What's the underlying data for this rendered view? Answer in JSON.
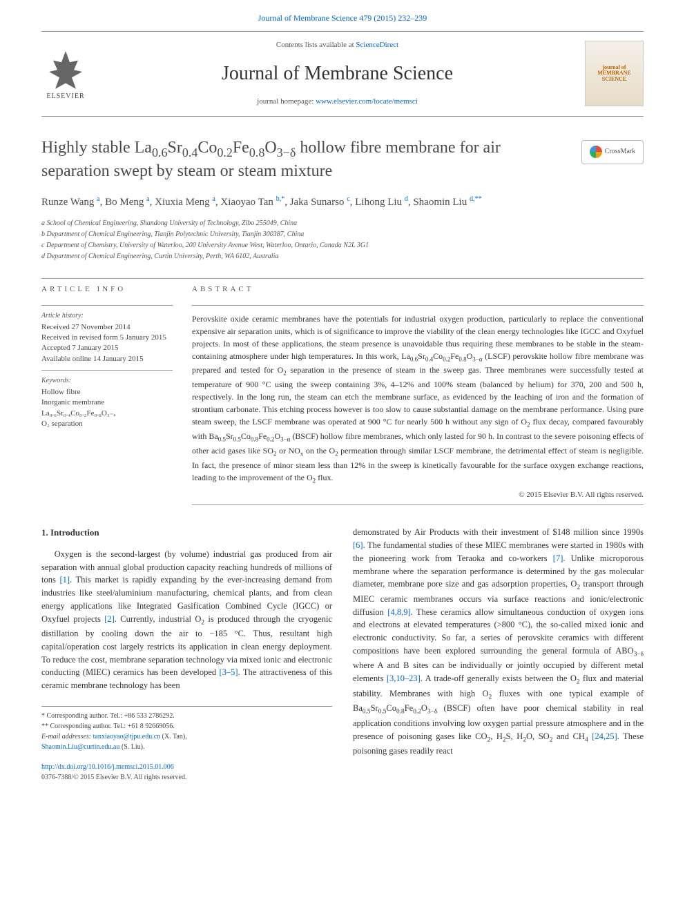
{
  "top_link": "Journal of Membrane Science 479 (2015) 232–239",
  "header": {
    "contents_prefix": "Contents lists available at ",
    "contents_link": "ScienceDirect",
    "journal_title": "Journal of Membrane Science",
    "homepage_prefix": "journal homepage: ",
    "homepage_link": "www.elsevier.com/locate/memsci",
    "elsevier_label": "ELSEVIER",
    "journal_logo_title": "journal of MEMBRANE SCIENCE",
    "crossmark_label": "CrossMark"
  },
  "paper": {
    "title_html": "Highly stable La<sub>0.6</sub>Sr<sub>0.4</sub>Co<sub>0.2</sub>Fe<sub>0.8</sub>O<sub>3−δ</sub> hollow fibre membrane for air separation swept by steam or steam mixture",
    "authors_html": "Runze Wang <sup>a</sup>, Bo Meng <sup>a</sup>, Xiuxia Meng <sup>a</sup>, Xiaoyao Tan <sup>b,*</sup>, Jaka Sunarso <sup>c</sup>, Lihong Liu <sup>d</sup>, Shaomin Liu <sup>d,**</sup>",
    "affiliations": [
      "a School of Chemical Engineering, Shandong University of Technology, Zibo 255049, China",
      "b Department of Chemical Engineering, Tianjin Polytechnic University, Tianjin 300387, China",
      "c Department of Chemistry, University of Waterloo, 200 University Avenue West, Waterloo, Ontario, Canada N2L 3G1",
      "d Department of Chemical Engineering, Curtin University, Perth, WA 6102, Australia"
    ]
  },
  "article_info": {
    "section_label": "ARTICLE INFO",
    "history_label": "Article history:",
    "history": [
      "Received 27 November 2014",
      "Received in revised form 5 January 2015",
      "Accepted 7 January 2015",
      "Available online 14 January 2015"
    ],
    "keywords_label": "Keywords:",
    "keywords": [
      "Hollow fibre",
      "Inorganic membrane",
      "La₀.₆Sr₀.₄Co₀.₂Fe₀.₈O₃₋ₐ",
      "O₂ separation"
    ]
  },
  "abstract": {
    "section_label": "ABSTRACT",
    "text_html": "Perovskite oxide ceramic membranes have the potentials for industrial oxygen production, particularly to replace the conventional expensive air separation units, which is of significance to improve the viability of the clean energy technologies like IGCC and Oxyfuel projects. In most of these applications, the steam presence is unavoidable thus requiring these membranes to be stable in the steam-containing atmosphere under high temperatures. In this work, La<sub>0.6</sub>Sr<sub>0.4</sub>Co<sub>0.2</sub>Fe<sub>0.8</sub>O<sub>3−α</sub> (LSCF) perovskite hollow fibre membrane was prepared and tested for O<sub>2</sub> separation in the presence of steam in the sweep gas. Three membranes were successfully tested at temperature of 900 °C using the sweep containing 3%, 4–12% and 100% steam (balanced by helium) for 370, 200 and 500 h, respectively. In the long run, the steam can etch the membrane surface, as evidenced by the leaching of iron and the formation of strontium carbonate. This etching process however is too slow to cause substantial damage on the membrane performance. Using pure steam sweep, the LSCF membrane was operated at 900 °C for nearly 500 h without any sign of O<sub>2</sub> flux decay, compared favourably with Ba<sub>0.5</sub>Sr<sub>0.5</sub>Co<sub>0.8</sub>Fe<sub>0.2</sub>O<sub>3−α</sub> (BSCF) hollow fibre membranes, which only lasted for 90 h. In contrast to the severe poisoning effects of other acid gases like SO<sub>2</sub> or NO<sub>x</sub> on the O<sub>2</sub> permeation through similar LSCF membrane, the detrimental effect of steam is negligible. In fact, the presence of minor steam less than 12% in the sweep is kinetically favourable for the surface oxygen exchange reactions, leading to the improvement of the O<sub>2</sub> flux.",
    "copyright": "© 2015 Elsevier B.V. All rights reserved."
  },
  "body": {
    "intro_heading": "1. Introduction",
    "col1_html": "Oxygen is the second-largest (by volume) industrial gas produced from air separation with annual global production capacity reaching hundreds of millions of tons <a class='ref' href='#'>[1]</a>. This market is rapidly expanding by the ever-increasing demand from industries like steel/aluminium manufacturing, chemical plants, and from clean energy applications like Integrated Gasification Combined Cycle (IGCC) or Oxyfuel projects <a class='ref' href='#'>[2]</a>. Currently, industrial O<sub>2</sub> is produced through the cryogenic distillation by cooling down the air to −185 °C. Thus, resultant high capital/operation cost largely restricts its application in clean energy deployment. To reduce the cost, membrane separation technology via mixed ionic and electronic conducting (MIEC) ceramics has been developed <a class='ref' href='#'>[3–5]</a>. The attractiveness of this ceramic membrane technology has been",
    "col2_html": "demonstrated by Air Products with their investment of $148 million since 1990s <a class='ref' href='#'>[6]</a>. The fundamental studies of these MIEC membranes were started in 1980s with the pioneering work from Teraoka and co-workers <a class='ref' href='#'>[7]</a>. Unlike microporous membrane where the separation performance is determined by the gas molecular diameter, membrane pore size and gas adsorption properties, O<sub>2</sub> transport through MIEC ceramic membranes occurs via surface reactions and ionic/electronic diffusion <a class='ref' href='#'>[4,8,9]</a>. These ceramics allow simultaneous conduction of oxygen ions and electrons at elevated temperatures (>800 °C), the so-called mixed ionic and electronic conductivity. So far, a series of perovskite ceramics with different compositions have been explored surrounding the general formula of ABO<sub>3−δ</sub> where A and B sites can be individually or jointly occupied by different metal elements <a class='ref' href='#'>[3,10–23]</a>. A trade-off generally exists between the O<sub>2</sub> flux and material stability. Membranes with high O<sub>2</sub> fluxes with one typical example of Ba<sub>0.5</sub>Sr<sub>0.5</sub>Co<sub>0.8</sub>Fe<sub>0.2</sub>O<sub>3−δ</sub> (BSCF) often have poor chemical stability in real application conditions involving low oxygen partial pressure atmosphere and in the presence of poisoning gases like CO<sub>2</sub>, H<sub>2</sub>S, H<sub>2</sub>O, SO<sub>2</sub> and CH<sub>4</sub> <a class='ref' href='#'>[24,25]</a>. These poisoning gases readily react"
  },
  "footnotes": {
    "corr1": "* Corresponding author. Tel.: +86 533 2786292.",
    "corr2": "** Corresponding author. Tel.: +61 8 92669056.",
    "email_label": "E-mail addresses: ",
    "email1": "tanxiaoyao@tjpu.edu.cn",
    "email1_who": " (X. Tan),",
    "email2": "Shaomin.Liu@curtin.edu.au",
    "email2_who": " (S. Liu)."
  },
  "doi": {
    "link": "http://dx.doi.org/10.1016/j.memsci.2015.01.006",
    "issn": "0376-7388/© 2015 Elsevier B.V. All rights reserved."
  },
  "colors": {
    "link": "#0066cc",
    "text": "#333333",
    "muted": "#555555",
    "border": "#888888"
  }
}
